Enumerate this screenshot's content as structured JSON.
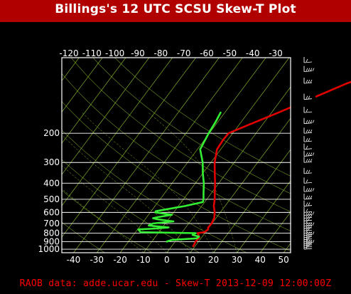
{
  "title": "Billings's 12 UTC SCSU Skew-T Plot",
  "footer": "RAOB data: adde.ucar.edu - Skew-T 2013-12-09 12:00:00Z",
  "chart_data": {
    "type": "line",
    "title": "Billings's 12 UTC SCSU Skew-T Plot",
    "pressure_axis": {
      "scale": "log",
      "ylim": [
        1050,
        70
      ],
      "tick_labels": [
        1000,
        900,
        800,
        700,
        600,
        500,
        400,
        300,
        200
      ]
    },
    "temperature_axis_bottom": {
      "xlim": [
        -45,
        53
      ],
      "tick_labels": [
        -40,
        -30,
        -20,
        -10,
        0,
        10,
        20,
        30,
        40,
        50
      ]
    },
    "temperature_axis_top": {
      "tick_labels": [
        -120,
        -110,
        -100,
        -90,
        -80,
        -70,
        -60,
        -50,
        -40,
        -30
      ]
    },
    "grid": true,
    "colors": {
      "title_bar": "#b10000",
      "temperature": "#e00000",
      "dewpoint": "#33ee33",
      "isotherm": "#9acd32",
      "isobar": "#ffffff",
      "wind_barbs": "#ffffff",
      "footer": "#ff0000"
    },
    "series": [
      {
        "name": "",
        "color": "#e00000",
        "points": [
          {
            "p": 960,
            "t": 9.2
          },
          {
            "p": 900,
            "t": 8.8
          },
          {
            "p": 850,
            "t": 9.0
          },
          {
            "p": 800,
            "t": 7.0
          },
          {
            "p": 790,
            "t": 9.5
          },
          {
            "p": 760,
            "t": 10.2
          },
          {
            "p": 740,
            "t": 9.6
          },
          {
            "p": 700,
            "t": 9.8
          },
          {
            "p": 650,
            "t": 9.2
          },
          {
            "p": 600,
            "t": 7.6
          },
          {
            "p": 550,
            "t": 5.2
          },
          {
            "p": 500,
            "t": 3.4
          },
          {
            "p": 450,
            "t": 1.0
          },
          {
            "p": 400,
            "t": -1.6
          },
          {
            "p": 350,
            "t": -4.8
          },
          {
            "p": 300,
            "t": -8.4
          },
          {
            "p": 250,
            "t": -11.6
          },
          {
            "p": 220,
            "t": -12.0
          },
          {
            "p": 200,
            "t": -11.8
          },
          {
            "p": 180,
            "t": -6.5
          },
          {
            "p": 150,
            "t": 3.0
          },
          {
            "p": 120,
            "t": 14.0
          },
          {
            "p": 100,
            "t": 23.0
          },
          {
            "p": 85,
            "t": 33.0
          },
          {
            "p": 75,
            "t": 40.5
          }
        ]
      },
      {
        "name": "",
        "color": "#33ee33",
        "points": [
          {
            "p": 900,
            "t": -3.6
          },
          {
            "p": 880,
            "t": -2.0
          },
          {
            "p": 860,
            "t": 8.2
          },
          {
            "p": 840,
            "t": 8.6
          },
          {
            "p": 820,
            "t": 5.3
          },
          {
            "p": 800,
            "t": 6.0
          },
          {
            "p": 790,
            "t": -17.8
          },
          {
            "p": 760,
            "t": -19.7
          },
          {
            "p": 750,
            "t": -12.6
          },
          {
            "p": 740,
            "t": -7.4
          },
          {
            "p": 720,
            "t": -16.5
          },
          {
            "p": 700,
            "t": -15.4
          },
          {
            "p": 690,
            "t": -11.5
          },
          {
            "p": 680,
            "t": -7.2
          },
          {
            "p": 660,
            "t": -14.8
          },
          {
            "p": 650,
            "t": -17.0
          },
          {
            "p": 640,
            "t": -15.0
          },
          {
            "p": 620,
            "t": -10.0
          },
          {
            "p": 600,
            "t": -17.9
          },
          {
            "p": 590,
            "t": -18.0
          },
          {
            "p": 550,
            "t": -7.5
          },
          {
            "p": 520,
            "t": -0.8
          },
          {
            "p": 500,
            "t": -1.4
          },
          {
            "p": 450,
            "t": -3.8
          },
          {
            "p": 400,
            "t": -6.4
          },
          {
            "p": 350,
            "t": -9.9
          },
          {
            "p": 300,
            "t": -13.5
          },
          {
            "p": 250,
            "t": -18.8
          },
          {
            "p": 200,
            "t": -20.3
          },
          {
            "p": 170,
            "t": -21.0
          },
          {
            "p": 150,
            "t": -21.8
          }
        ]
      }
    ],
    "wind_barb_pressures": [
      1000,
      975,
      950,
      925,
      900,
      875,
      850,
      825,
      800,
      775,
      750,
      725,
      700,
      675,
      650,
      625,
      600,
      550,
      500,
      450,
      400,
      350,
      300,
      275,
      250,
      225,
      200,
      175,
      150,
      125,
      100,
      85,
      75
    ]
  }
}
